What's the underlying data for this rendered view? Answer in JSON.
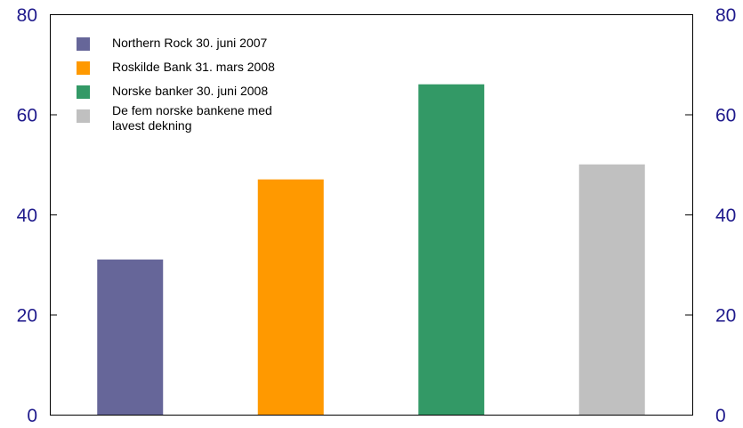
{
  "chart_data": {
    "type": "bar",
    "title": "",
    "xlabel": "",
    "ylabel": "",
    "ylim": [
      0,
      80
    ],
    "yticks": [
      0,
      20,
      40,
      60,
      80
    ],
    "secondary_yticks": [
      0,
      20,
      40,
      60,
      80
    ],
    "grid": false,
    "legend_position": "top-left",
    "categories": [
      "Northern Rock 30. juni 2007",
      "Roskilde Bank 31. mars 2008",
      "Norske banker 30. juni 2008",
      "De fem norske bankene med lavest dekning"
    ],
    "legend": [
      {
        "lines": [
          "Northern Rock 30. juni 2007"
        ]
      },
      {
        "lines": [
          "Roskilde Bank 31. mars 2008"
        ]
      },
      {
        "lines": [
          "Norske banker 30. juni 2008"
        ]
      },
      {
        "lines": [
          "De fem norske bankene med",
          "lavest dekning"
        ]
      }
    ],
    "values": [
      31,
      47,
      66,
      50
    ],
    "colors": [
      "#666699",
      "#ff9900",
      "#339966",
      "#c0c0c0"
    ],
    "tick_color": "#1f1a8c"
  }
}
